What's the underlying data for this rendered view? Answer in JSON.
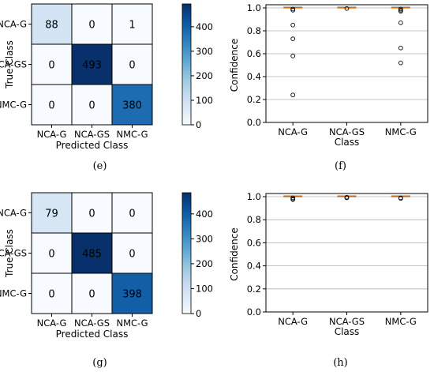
{
  "chart_data": [
    {
      "type": "heatmap",
      "caption": "(e)",
      "xlabel": "Predicted Class",
      "ylabel": "True Class",
      "categories": [
        "NCA-G",
        "NCA-GS",
        "NMC-G"
      ],
      "matrix": [
        [
          88,
          0,
          1
        ],
        [
          0,
          493,
          0
        ],
        [
          0,
          0,
          380
        ]
      ],
      "colorbar": {
        "range": [
          0,
          493
        ],
        "ticks": [
          0,
          100,
          200,
          300,
          400
        ],
        "colormap": "Blues"
      }
    },
    {
      "type": "box",
      "caption": "(f)",
      "xlabel": "Class",
      "ylabel": "Confidence",
      "categories": [
        "NCA-G",
        "NCA-GS",
        "NMC-G"
      ],
      "ylim": [
        0,
        1.0
      ],
      "yticks": [
        0.0,
        0.2,
        0.4,
        0.6,
        0.8,
        1.0
      ],
      "grid": true,
      "medians": [
        1.0,
        1.0,
        1.0
      ],
      "outliers": [
        [
          0.99,
          0.98,
          0.85,
          0.73,
          0.58,
          0.24
        ],
        [
          0.995
        ],
        [
          0.99,
          0.98,
          0.97,
          0.87,
          0.65,
          0.52
        ]
      ],
      "median_color": "#ff7f0e"
    },
    {
      "type": "heatmap",
      "caption": "(g)",
      "xlabel": "Predicted Class",
      "ylabel": "True Class",
      "categories": [
        "NCA-G",
        "NCA-GS",
        "NMC-G"
      ],
      "matrix": [
        [
          79,
          0,
          0
        ],
        [
          0,
          485,
          0
        ],
        [
          0,
          0,
          398
        ]
      ],
      "colorbar": {
        "range": [
          0,
          485
        ],
        "ticks": [
          0,
          100,
          200,
          300,
          400
        ],
        "colormap": "Blues"
      }
    },
    {
      "type": "box",
      "caption": "(h)",
      "xlabel": "Class",
      "ylabel": "Confidence",
      "categories": [
        "NCA-G",
        "NCA-GS",
        "NMC-G"
      ],
      "ylim": [
        0,
        1.0
      ],
      "yticks": [
        0.0,
        0.2,
        0.4,
        0.6,
        0.8,
        1.0
      ],
      "grid": true,
      "medians": [
        1.0,
        1.0,
        1.0
      ],
      "outliers": [
        [
          0.99,
          0.98,
          0.975
        ],
        [
          0.995,
          0.99
        ],
        [
          0.99,
          0.985
        ]
      ],
      "median_color": "#ff7f0e"
    }
  ]
}
